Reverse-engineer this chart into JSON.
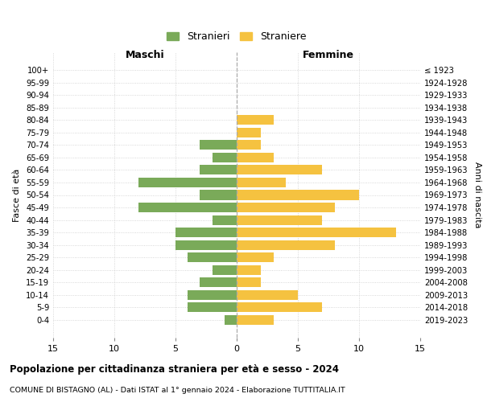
{
  "age_groups": [
    "0-4",
    "5-9",
    "10-14",
    "15-19",
    "20-24",
    "25-29",
    "30-34",
    "35-39",
    "40-44",
    "45-49",
    "50-54",
    "55-59",
    "60-64",
    "65-69",
    "70-74",
    "75-79",
    "80-84",
    "85-89",
    "90-94",
    "95-99",
    "100+"
  ],
  "birth_years": [
    "2019-2023",
    "2014-2018",
    "2009-2013",
    "2004-2008",
    "1999-2003",
    "1994-1998",
    "1989-1993",
    "1984-1988",
    "1979-1983",
    "1974-1978",
    "1969-1973",
    "1964-1968",
    "1959-1963",
    "1954-1958",
    "1949-1953",
    "1944-1948",
    "1939-1943",
    "1934-1938",
    "1929-1933",
    "1924-1928",
    "≤ 1923"
  ],
  "maschi": [
    1,
    4,
    4,
    3,
    2,
    4,
    5,
    5,
    2,
    8,
    3,
    8,
    3,
    2,
    3,
    0,
    0,
    0,
    0,
    0,
    0
  ],
  "femmine": [
    3,
    7,
    5,
    2,
    2,
    3,
    8,
    13,
    7,
    8,
    10,
    4,
    7,
    3,
    2,
    2,
    3,
    0,
    0,
    0,
    0
  ],
  "maschi_color": "#7aaa59",
  "femmine_color": "#f5c240",
  "background_color": "#ffffff",
  "grid_color": "#cccccc",
  "center_line_color": "#aaaaaa",
  "title": "Popolazione per cittadinanza straniera per età e sesso - 2024",
  "subtitle": "COMUNE DI BISTAGNO (AL) - Dati ISTAT al 1° gennaio 2024 - Elaborazione TUTTITALIA.IT",
  "xlabel_left": "Maschi",
  "xlabel_right": "Femmine",
  "ylabel_left": "Fasce di età",
  "ylabel_right": "Anni di nascita",
  "legend_maschi": "Stranieri",
  "legend_femmine": "Straniere",
  "xlim": 15
}
